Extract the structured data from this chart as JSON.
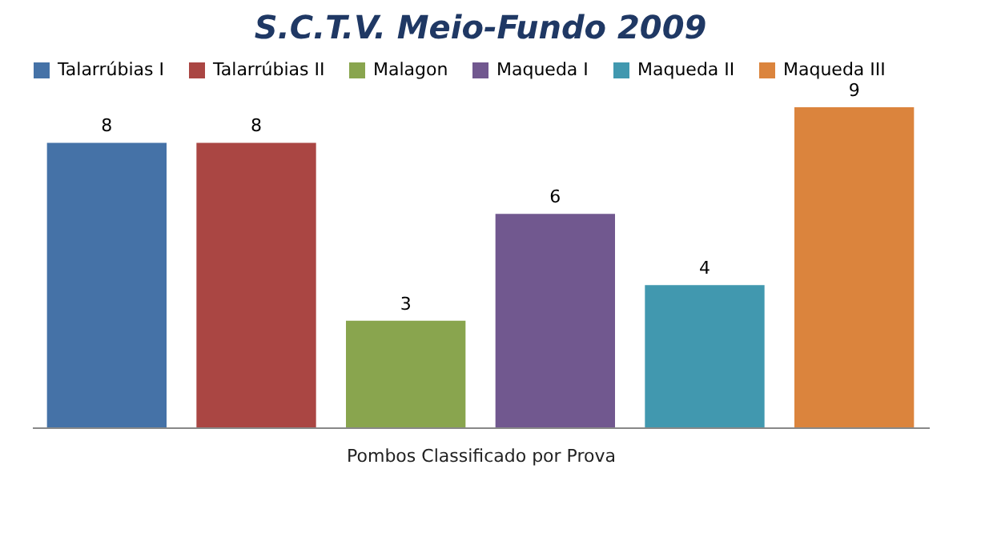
{
  "chart_data": {
    "type": "bar",
    "title": "S.C.T.V. Meio-Fundo 2009",
    "xlabel": "Pombos Classificado por Prova",
    "categories": [
      null
    ],
    "legend": "top",
    "data_labels": true,
    "series": [
      {
        "name": "Talarrúbias I",
        "color": "#4572a7",
        "values": [
          8
        ]
      },
      {
        "name": "Talarrúbias II",
        "color": "#aa4643",
        "values": [
          8
        ]
      },
      {
        "name": "Malagon",
        "color": "#89a54e",
        "values": [
          3
        ]
      },
      {
        "name": "Maqueda I",
        "color": "#71588f",
        "values": [
          6
        ]
      },
      {
        "name": "Maqueda II",
        "color": "#4198af",
        "values": [
          4
        ]
      },
      {
        "name": "Maqueda III",
        "color": "#db843d",
        "values": [
          9
        ]
      }
    ]
  }
}
